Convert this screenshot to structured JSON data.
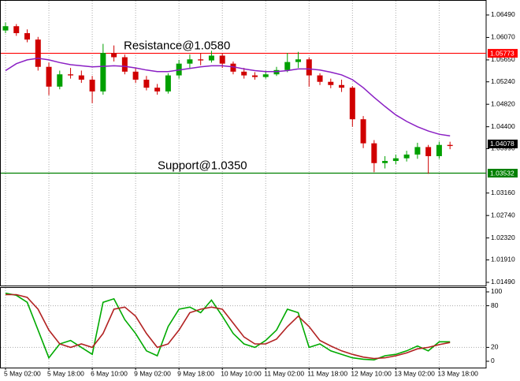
{
  "chart_data": [
    {
      "type": "candlestick",
      "up_color": "#00a000",
      "down_color": "#d00000",
      "open": [
        1.062,
        1.0628,
        1.0615,
        1.0603,
        1.0552,
        1.0515,
        1.0538,
        1.0536,
        1.0528,
        1.0506,
        1.0578,
        1.057,
        1.0543,
        1.0528,
        1.0513,
        1.0506,
        1.0536,
        1.0558,
        1.0566,
        1.0564,
        1.0573,
        1.0558,
        1.0543,
        1.0536,
        1.0533,
        1.0538,
        1.0546,
        1.0561,
        1.0566,
        1.0536,
        1.0524,
        1.0518,
        1.0513,
        1.0454,
        1.0409,
        1.0372,
        1.0376,
        1.0381,
        1.0388,
        1.0402,
        1.0385,
        1.0406
      ],
      "high": [
        1.0635,
        1.0632,
        1.0622,
        1.0608,
        1.056,
        1.0545,
        1.055,
        1.0545,
        1.0535,
        1.0595,
        1.0592,
        1.0575,
        1.055,
        1.0535,
        1.052,
        1.054,
        1.0565,
        1.0575,
        1.0578,
        1.0582,
        1.0578,
        1.0562,
        1.055,
        1.0542,
        1.0545,
        1.0552,
        1.0578,
        1.058,
        1.057,
        1.054,
        1.053,
        1.0528,
        1.0516,
        1.046,
        1.0415,
        1.0385,
        1.0388,
        1.0395,
        1.041,
        1.0406,
        1.0412,
        1.0412
      ],
      "low": [
        1.0615,
        1.061,
        1.0598,
        1.0545,
        1.0499,
        1.051,
        1.053,
        1.0522,
        1.0484,
        1.05,
        1.0562,
        1.0538,
        1.0522,
        1.0508,
        1.05,
        1.0502,
        1.053,
        1.055,
        1.0555,
        1.056,
        1.055,
        1.0538,
        1.053,
        1.0528,
        1.053,
        1.0535,
        1.0542,
        1.055,
        1.0515,
        1.0518,
        1.0512,
        1.0505,
        1.044,
        1.04,
        1.0355,
        1.0362,
        1.037,
        1.0375,
        1.038,
        1.0352,
        1.038,
        1.0398
      ],
      "close": [
        1.0628,
        1.0615,
        1.0603,
        1.0552,
        1.0515,
        1.0538,
        1.0536,
        1.0528,
        1.0506,
        1.0578,
        1.057,
        1.0543,
        1.0528,
        1.0513,
        1.0506,
        1.0536,
        1.0558,
        1.0566,
        1.0564,
        1.0573,
        1.0558,
        1.0543,
        1.0536,
        1.0533,
        1.0538,
        1.0546,
        1.0561,
        1.0566,
        1.0536,
        1.0524,
        1.0518,
        1.0513,
        1.0454,
        1.0409,
        1.0372,
        1.0376,
        1.0381,
        1.0388,
        1.0402,
        1.0385,
        1.0406,
        1.0404
      ],
      "ma": {
        "color": "#8a1fc4",
        "values": [
          1.0545,
          1.0558,
          1.0565,
          1.0568,
          1.0565,
          1.056,
          1.0556,
          1.0554,
          1.0552,
          1.0553,
          1.0554,
          1.0553,
          1.055,
          1.0546,
          1.0543,
          1.0543,
          1.0546,
          1.0549,
          1.0552,
          1.0554,
          1.0554,
          1.0552,
          1.0548,
          1.0545,
          1.0543,
          1.0543,
          1.0545,
          1.0548,
          1.0548,
          1.0546,
          1.0542,
          1.0537,
          1.0528,
          1.0513,
          1.0495,
          1.0478,
          1.0462,
          1.045,
          1.044,
          1.0432,
          1.0426,
          1.0423
        ]
      },
      "hlines": [
        {
          "value": 1.05773,
          "color": "#ff0000"
        },
        {
          "value": 1.03532,
          "color": "#008000"
        }
      ],
      "annotations": [
        "Resistance@1.0580",
        "Support@1.0350"
      ],
      "last_price": 1.04078,
      "ylim": [
        1.0143,
        1.0677
      ],
      "yticks": [
        {
          "value": 1.0649,
          "label": "1.06490"
        },
        {
          "value": 1.0607,
          "label": "1.06070"
        },
        {
          "value": 1.0565,
          "label": "1.05650"
        },
        {
          "value": 1.0524,
          "label": "1.05240"
        },
        {
          "value": 1.0482,
          "label": "1.04820"
        },
        {
          "value": 1.044,
          "label": "1.04400"
        },
        {
          "value": 1.0399,
          "label": "1.03990"
        },
        {
          "value": 1.0316,
          "label": "1.03160"
        },
        {
          "value": 1.0274,
          "label": "1.02740"
        },
        {
          "value": 1.0232,
          "label": "1.02320"
        },
        {
          "value": 1.0191,
          "label": "1.01910"
        },
        {
          "value": 1.0149,
          "label": "1.01490"
        }
      ]
    },
    {
      "type": "line",
      "categories": [
        "5 May 02:00",
        null,
        null,
        null,
        "5 May 18:00",
        null,
        null,
        null,
        "6 May 10:00",
        null,
        null,
        null,
        "9 May 02:00",
        null,
        null,
        null,
        "9 May 18:00",
        null,
        null,
        null,
        "10 May 10:00",
        null,
        null,
        null,
        "11 May 02:00",
        null,
        null,
        null,
        "11 May 18:00",
        null,
        null,
        null,
        "12 May 10:00",
        null,
        null,
        null,
        "13 May 02:00",
        null,
        null,
        null,
        "13 May 18:00",
        null
      ],
      "series": [
        {
          "color": "#00aa00",
          "values": [
            98,
            95,
            85,
            45,
            5,
            25,
            30,
            20,
            10,
            85,
            90,
            60,
            40,
            15,
            8,
            50,
            75,
            78,
            70,
            88,
            65,
            40,
            25,
            20,
            30,
            45,
            75,
            70,
            20,
            25,
            15,
            10,
            5,
            3,
            2,
            8,
            10,
            15,
            22,
            15,
            28,
            28
          ]
        },
        {
          "color": "#b22222",
          "values": [
            96,
            96,
            92,
            75,
            45,
            25,
            20,
            25,
            20,
            40,
            75,
            78,
            65,
            40,
            20,
            25,
            45,
            70,
            75,
            78,
            75,
            55,
            35,
            25,
            25,
            32,
            50,
            65,
            50,
            30,
            22,
            15,
            10,
            6,
            4,
            5,
            8,
            12,
            18,
            20,
            24,
            27
          ]
        }
      ],
      "levels": [
        80,
        20
      ],
      "ylim": [
        -9.1,
        106.8
      ],
      "yticks": [
        100,
        80,
        20,
        0
      ]
    }
  ]
}
